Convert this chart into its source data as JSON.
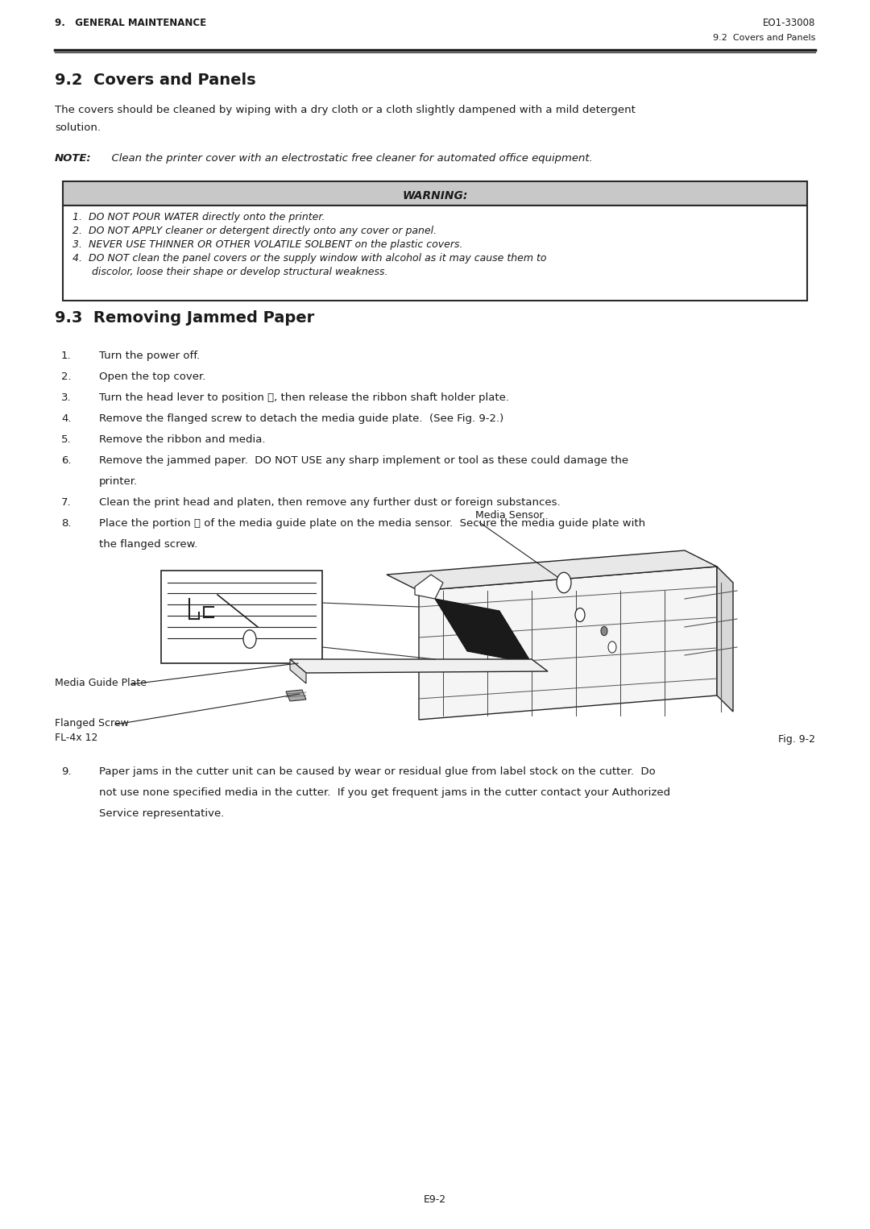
{
  "page_width": 10.8,
  "page_height": 15.25,
  "bg_color": "#ffffff",
  "header_left": "9.   GENERAL MAINTENANCE",
  "header_right": "EO1-33008",
  "subheader_right": "9.2  Covers and Panels",
  "section1_title": "9.2  Covers and Panels",
  "section1_body1": "The covers should be cleaned by wiping with a dry cloth or a cloth slightly dampened with a mild detergent",
  "section1_body2": "solution.",
  "note_label": "NOTE:",
  "note_text": "  Clean the printer cover with an electrostatic free cleaner for automated office equipment.",
  "warning_title": "WARNING:",
  "warning_items": [
    "1.  DO NOT POUR WATER directly onto the printer.",
    "2.  DO NOT APPLY cleaner or detergent directly onto any cover or panel.",
    "3.  NEVER USE THINNER OR OTHER VOLATILE SOLBENT on the plastic covers.",
    "4.  DO NOT clean the panel covers or the supply window with alcohol as it may cause them to",
    "      discolor, loose their shape or develop structural weakness."
  ],
  "section2_title": "9.3  Removing Jammed Paper",
  "steps": [
    "Turn the power off.",
    "Open the top cover.",
    "Turn the head lever to position ⓢ, then release the ribbon shaft holder plate.",
    "Remove the flanged screw to detach the media guide plate.  (See Fig. 9-2.)",
    "Remove the ribbon and media.",
    "Remove the jammed paper.  DO NOT USE any sharp implement or tool as these could damage the",
    "Clean the print head and platen, then remove any further dust or foreign substances.",
    "Place the portion Ⓑ of the media guide plate on the media sensor.  Secure the media guide plate with"
  ],
  "step6_cont": "printer.",
  "step8_cont": "the flanged screw.",
  "fig_label_sensor": "Media Sensor",
  "fig_label_guide": "Media Guide Plate",
  "fig_label_screw": "Flanged Screw",
  "fig_label_screw2": "FL-4x 12",
  "fig_caption": "Fig. 9-2",
  "step9_text1": "Paper jams in the cutter unit can be caused by wear or residual glue from label stock on the cutter.  Do",
  "step9_text2": "not use none specified media in the cutter.  If you get frequent jams in the cutter contact your Authorized",
  "step9_text3": "Service representative.",
  "footer": "E9-2",
  "text_color": "#1a1a1a",
  "warning_bg": "#c8c8c8",
  "warning_border": "#2a2a2a",
  "header_line_color": "#1a1a1a"
}
